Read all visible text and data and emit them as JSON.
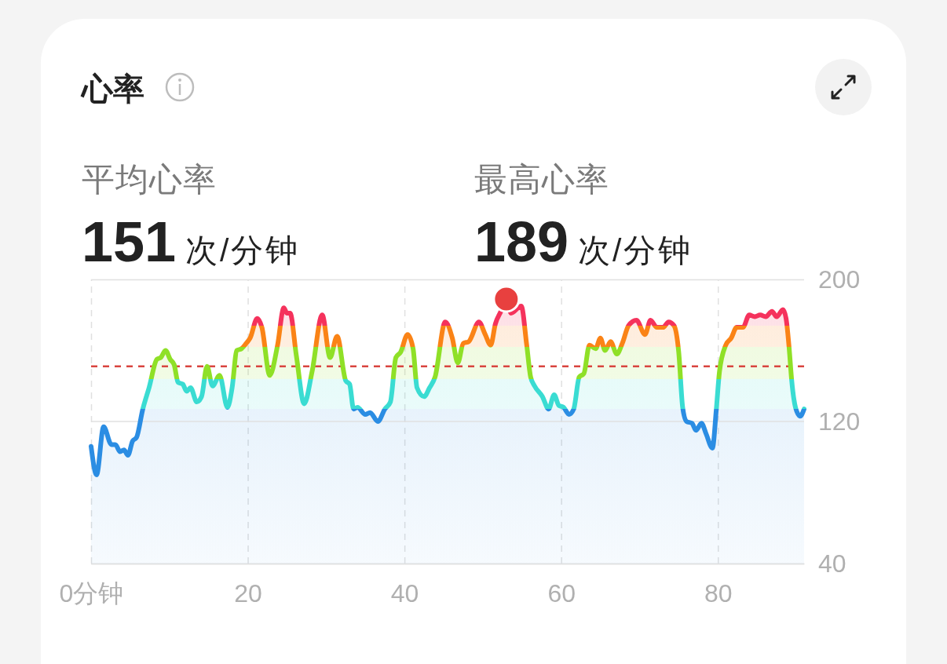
{
  "chart_data": {
    "type": "area",
    "title": "心率",
    "annotations": [
      "平均心率",
      "151",
      "次/分钟",
      "最高心率",
      "189",
      "次/分钟"
    ],
    "xlim": [
      0,
      91
    ],
    "xticks": [
      {
        "value": 0,
        "label": "0分钟"
      },
      20,
      40,
      60,
      80
    ],
    "ylim": [
      40,
      200
    ],
    "yticks": [
      40,
      120,
      200
    ],
    "grid": true,
    "series": [
      {
        "x": [
          0,
          0.7,
          1.6,
          2.6,
          3.1,
          3.7,
          4.2,
          4.7,
          5.3,
          5.8,
          6.6,
          7.4,
          8.4,
          8.9,
          9.5,
          10.1,
          10.6,
          11.1,
          11.7,
          12.2,
          12.7,
          13.5,
          14.1,
          14.8,
          15.5,
          16.4,
          17.4,
          18.0,
          18.6,
          19.2,
          19.8,
          20.3,
          21.2,
          21.8,
          22.8,
          23.8,
          24.6,
          25.0,
          25.4,
          26.2,
          27.2,
          28.2,
          29.5,
          30.5,
          31.4,
          32.5,
          33.0,
          33.5,
          34.0,
          35.0,
          35.6,
          36.6,
          37.5,
          38.2,
          38.9,
          39.5,
          40.4,
          41.1,
          41.6,
          42.5,
          43.2,
          43.9,
          45.2,
          46.1,
          46.8,
          47.5,
          48.2,
          49.5,
          50.3,
          51.0,
          51.6,
          52.3,
          53.0,
          53.6,
          54.9,
          55.6,
          56.1,
          56.6,
          57.6,
          58.4,
          59.1,
          59.7,
          60.3,
          61.0,
          61.6,
          62.3,
          62.9,
          63.6,
          64.4,
          65.0,
          65.6,
          66.3,
          67.1,
          67.8,
          68.6,
          69.6,
          70.7,
          71.4,
          72.2,
          73.0,
          73.7,
          74.4,
          75.0,
          75.5,
          76.0,
          76.7,
          77.2,
          77.9,
          78.5,
          79.3,
          79.8,
          80.2,
          81.0,
          81.7,
          82.4,
          83.2,
          84.0,
          84.7,
          85.4,
          86.1,
          86.9,
          87.5,
          88.3,
          88.7,
          89.1,
          89.4,
          89.9,
          90.5,
          91.0
        ],
        "values": [
          106,
          90,
          117,
          107,
          107,
          103,
          104,
          101,
          109,
          111,
          127,
          139,
          155,
          156,
          160,
          155,
          152,
          142,
          141,
          137,
          139,
          131,
          134,
          151,
          140,
          146,
          128,
          139,
          160,
          161,
          164,
          167,
          178,
          173,
          146,
          163,
          184,
          181,
          181,
          157,
          130,
          148,
          180,
          156,
          168,
          143,
          141,
          127,
          128,
          124,
          125,
          120,
          127,
          131,
          156,
          159,
          169,
          161,
          139,
          134,
          139,
          145,
          176,
          167,
          153,
          164,
          165,
          176,
          169,
          163,
          175,
          182,
          189,
          181,
          185,
          163,
          145,
          140,
          134,
          127,
          135,
          129,
          128,
          124,
          127,
          145,
          147,
          163,
          161,
          167,
          160,
          165,
          158,
          164,
          174,
          177,
          169,
          177,
          173,
          173,
          176,
          174,
          159,
          128,
          120,
          119,
          115,
          119,
          113,
          105,
          127,
          148,
          163,
          167,
          173,
          173,
          180,
          179,
          180,
          179,
          182,
          179,
          183,
          178,
          161,
          144,
          128,
          123,
          127
        ]
      },
      {
        "type": "scatter",
        "x": [
          53
        ],
        "values": [
          189
        ],
        "color": "#e8403f",
        "marker": "circle"
      }
    ],
    "ref_lines": [
      {
        "axis": "y",
        "value": 151,
        "color": "#d9453f",
        "line_style": "dashed"
      },
      {
        "axis": "y",
        "value": 120,
        "color": "#e0e0e0",
        "line_style": "solid"
      }
    ],
    "bands": [
      {
        "axis": "y",
        "from": 40,
        "to": 127,
        "color": "#2b8de3"
      },
      {
        "axis": "y",
        "from": 127,
        "to": 144,
        "color": "#3adcd2"
      },
      {
        "axis": "y",
        "from": 144,
        "to": 162,
        "color": "#8fe027"
      },
      {
        "axis": "y",
        "from": 162,
        "to": 174,
        "color": "#fa8316"
      },
      {
        "axis": "y",
        "from": 174,
        "to": 200,
        "color": "#f5325c"
      }
    ]
  }
}
